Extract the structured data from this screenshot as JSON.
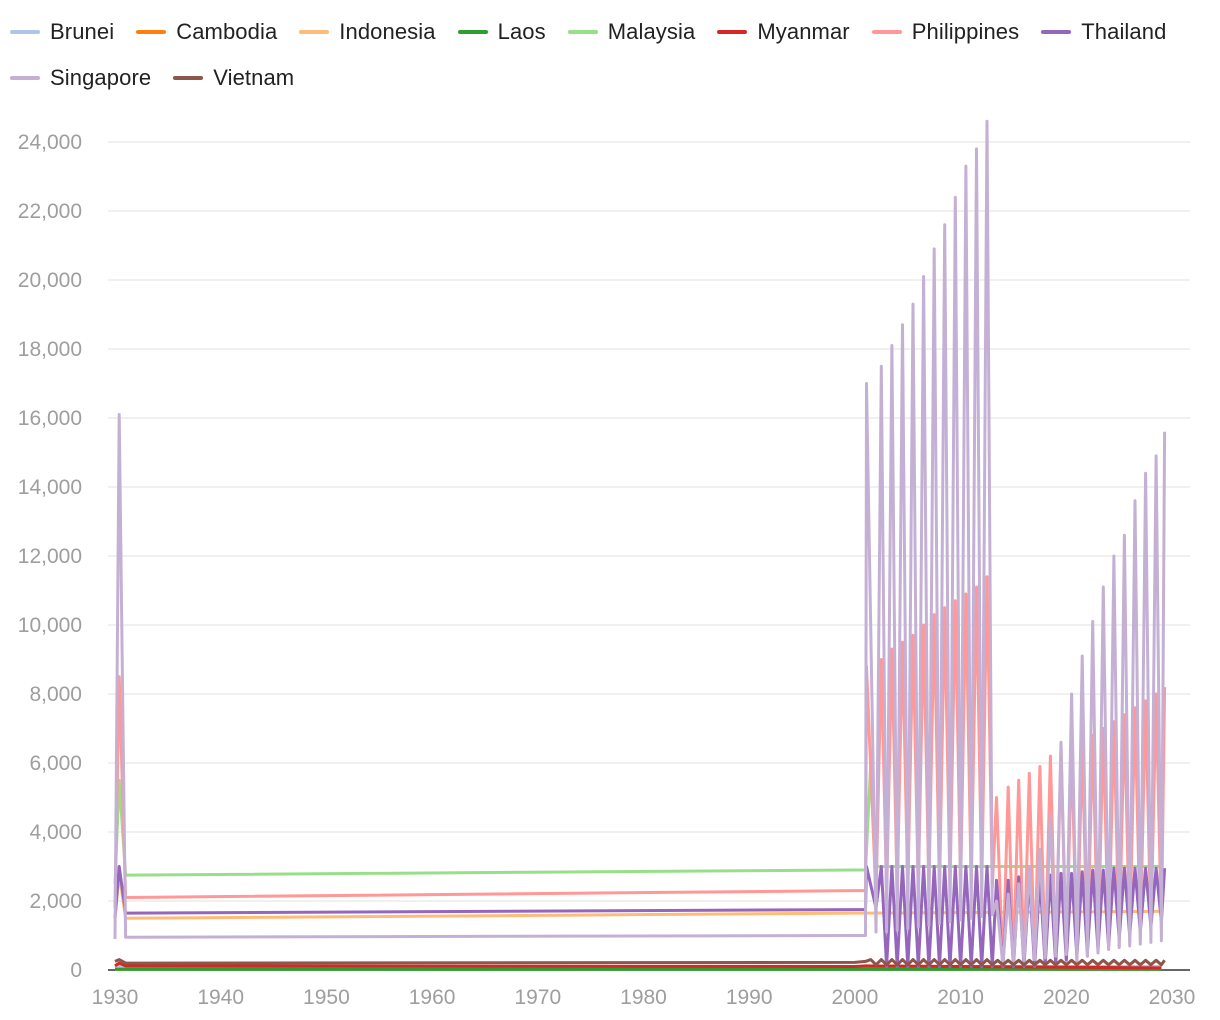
{
  "chart_data": {
    "type": "line",
    "title": "",
    "xlabel": "",
    "ylabel": "",
    "xlim": [
      1930,
      2030
    ],
    "ylim": [
      0,
      25000
    ],
    "x_ticks": [
      1930,
      1940,
      1950,
      1960,
      1970,
      1980,
      1990,
      2000,
      2010,
      2020,
      2030
    ],
    "y_ticks": [
      0,
      2000,
      4000,
      6000,
      8000,
      10000,
      12000,
      14000,
      16000,
      18000,
      20000,
      22000,
      24000
    ],
    "x_tick_labels": [
      "1930",
      "1940",
      "1950",
      "1960",
      "1970",
      "1980",
      "1990",
      "2000",
      "2010",
      "2020",
      "2030"
    ],
    "y_tick_labels": [
      "0",
      "2,000",
      "4,000",
      "6,000",
      "8,000",
      "10,000",
      "12,000",
      "14,000",
      "16,000",
      "18,000",
      "20,000",
      "22,000",
      "24,000"
    ],
    "grid": "horizontal",
    "legend_position": "top",
    "series": [
      {
        "name": "Brunei",
        "color": "#aec7e8",
        "points": [
          [
            1930,
            60
          ],
          [
            1930.4,
            100
          ],
          [
            1931,
            50
          ],
          [
            2000,
            60
          ],
          [
            2001,
            100
          ],
          [
            2029,
            100
          ]
        ]
      },
      {
        "name": "Cambodia",
        "color": "#ff7f0e",
        "points": [
          [
            1930,
            20
          ],
          [
            1931,
            30
          ],
          [
            2000,
            30
          ],
          [
            2001,
            40
          ],
          [
            2029,
            50
          ]
        ]
      },
      {
        "name": "Indonesia",
        "color": "#ffbb78",
        "points": [
          [
            1930,
            1500
          ],
          [
            1930.4,
            2800
          ],
          [
            1931,
            1500
          ],
          [
            2000,
            1650
          ],
          [
            2001,
            1650
          ],
          [
            2029,
            1700
          ]
        ]
      },
      {
        "name": "Laos",
        "color": "#2ca02c",
        "points": [
          [
            1930,
            20
          ],
          [
            1931,
            20
          ],
          [
            2000,
            20
          ],
          [
            2029,
            20
          ]
        ]
      },
      {
        "name": "Malaysia",
        "color": "#98df8a",
        "points": [
          [
            1930,
            2500
          ],
          [
            1930.4,
            5500
          ],
          [
            1931,
            2750
          ],
          [
            2000,
            2900
          ],
          [
            2001,
            2900
          ],
          [
            2001.5,
            6000
          ],
          [
            2002,
            3000
          ],
          [
            2029,
            3000
          ]
        ]
      },
      {
        "name": "Myanmar",
        "color": "#d62728",
        "points": [
          [
            1930,
            120
          ],
          [
            1930.4,
            200
          ],
          [
            1931,
            120
          ],
          [
            2000,
            100
          ],
          [
            2001,
            120
          ],
          [
            2029,
            60
          ]
        ]
      },
      {
        "name": "Philippines",
        "color": "#ff9896",
        "points": [
          [
            1930,
            1800
          ],
          [
            1930.4,
            8500
          ],
          [
            1931,
            2100
          ],
          [
            2000,
            2300
          ],
          [
            2001,
            2300
          ],
          [
            2001.1,
            8800
          ],
          [
            2002,
            2100
          ],
          [
            2002.5,
            9000
          ],
          [
            2003,
            2200
          ],
          [
            2003.5,
            9300
          ],
          [
            2004,
            2200
          ],
          [
            2004.5,
            9500
          ],
          [
            2005,
            2300
          ],
          [
            2005.5,
            9700
          ],
          [
            2006,
            2300
          ],
          [
            2006.5,
            10000
          ],
          [
            2007,
            2300
          ],
          [
            2007.5,
            10300
          ],
          [
            2008,
            2300
          ],
          [
            2008.5,
            10500
          ],
          [
            2009,
            2400
          ],
          [
            2009.5,
            10700
          ],
          [
            2010,
            2400
          ],
          [
            2010.5,
            10900
          ],
          [
            2011,
            2400
          ],
          [
            2011.5,
            11100
          ],
          [
            2012,
            2400
          ],
          [
            2012.5,
            11400
          ],
          [
            2013,
            2400
          ],
          [
            2013.4,
            5000
          ],
          [
            2014,
            100
          ],
          [
            2014.5,
            5300
          ],
          [
            2015,
            200
          ],
          [
            2015.5,
            5500
          ],
          [
            2016,
            200
          ],
          [
            2016.5,
            5700
          ],
          [
            2017,
            200
          ],
          [
            2017.5,
            5900
          ],
          [
            2018,
            200
          ],
          [
            2018.5,
            6200
          ],
          [
            2019,
            200
          ],
          [
            2019.5,
            6400
          ],
          [
            2020,
            200
          ],
          [
            2020.5,
            6500
          ],
          [
            2021,
            200
          ],
          [
            2021.5,
            6600
          ],
          [
            2022,
            400
          ],
          [
            2022.5,
            6800
          ],
          [
            2023,
            500
          ],
          [
            2023.5,
            7000
          ],
          [
            2024,
            600
          ],
          [
            2024.5,
            7200
          ],
          [
            2025,
            700
          ],
          [
            2025.5,
            7400
          ],
          [
            2026,
            800
          ],
          [
            2026.5,
            7600
          ],
          [
            2027,
            900
          ],
          [
            2027.5,
            7800
          ],
          [
            2028,
            1100
          ],
          [
            2028.5,
            8000
          ],
          [
            2029,
            1200
          ],
          [
            2029.3,
            8200
          ]
        ]
      },
      {
        "name": "Thailand",
        "color": "#9467bd",
        "points": [
          [
            1930,
            1500
          ],
          [
            1930.4,
            3000
          ],
          [
            1931,
            1650
          ],
          [
            2000,
            1750
          ],
          [
            2001,
            1750
          ],
          [
            2001.1,
            3000
          ],
          [
            2002,
            1800
          ],
          [
            2002.5,
            3000
          ],
          [
            2003,
            100
          ],
          [
            2003.5,
            3000
          ],
          [
            2004,
            100
          ],
          [
            2004.5,
            3000
          ],
          [
            2005,
            100
          ],
          [
            2005.5,
            3000
          ],
          [
            2006,
            100
          ],
          [
            2006.5,
            3000
          ],
          [
            2007,
            100
          ],
          [
            2007.5,
            3000
          ],
          [
            2008,
            100
          ],
          [
            2008.5,
            3000
          ],
          [
            2009,
            100
          ],
          [
            2009.5,
            3000
          ],
          [
            2010,
            100
          ],
          [
            2010.5,
            3000
          ],
          [
            2011,
            100
          ],
          [
            2011.5,
            3000
          ],
          [
            2012,
            100
          ],
          [
            2012.5,
            3000
          ],
          [
            2013,
            100
          ],
          [
            2013.4,
            2600
          ],
          [
            2014,
            100
          ],
          [
            2014.5,
            2600
          ],
          [
            2015,
            100
          ],
          [
            2015.5,
            2700
          ],
          [
            2016,
            100
          ],
          [
            2016.5,
            2700
          ],
          [
            2017,
            100
          ],
          [
            2017.5,
            2700
          ],
          [
            2018,
            150
          ],
          [
            2018.5,
            2750
          ],
          [
            2019,
            200
          ],
          [
            2019.5,
            2800
          ],
          [
            2020,
            300
          ],
          [
            2020.5,
            2800
          ],
          [
            2021,
            400
          ],
          [
            2021.5,
            2850
          ],
          [
            2022,
            500
          ],
          [
            2022.5,
            2900
          ],
          [
            2023,
            600
          ],
          [
            2023.5,
            2900
          ],
          [
            2024,
            700
          ],
          [
            2024.5,
            2950
          ],
          [
            2025,
            900
          ],
          [
            2025.5,
            2950
          ],
          [
            2026,
            1000
          ],
          [
            2026.5,
            2950
          ],
          [
            2027,
            1100
          ],
          [
            2027.5,
            2950
          ],
          [
            2028,
            1250
          ],
          [
            2028.5,
            2950
          ],
          [
            2029,
            1400
          ],
          [
            2029.3,
            2950
          ]
        ]
      },
      {
        "name": "Singapore",
        "color": "#c5b0d5",
        "points": [
          [
            1930,
            900
          ],
          [
            1930.4,
            16100
          ],
          [
            1931,
            950
          ],
          [
            2000,
            1000
          ],
          [
            2001,
            1000
          ],
          [
            2001.1,
            17000
          ],
          [
            2002,
            1100
          ],
          [
            2002.5,
            17500
          ],
          [
            2003,
            1100
          ],
          [
            2003.5,
            18100
          ],
          [
            2004,
            1150
          ],
          [
            2004.5,
            18700
          ],
          [
            2005,
            1200
          ],
          [
            2005.5,
            19300
          ],
          [
            2006,
            1250
          ],
          [
            2006.5,
            20100
          ],
          [
            2007,
            1300
          ],
          [
            2007.5,
            20900
          ],
          [
            2008,
            1350
          ],
          [
            2008.5,
            21600
          ],
          [
            2009,
            1400
          ],
          [
            2009.5,
            22400
          ],
          [
            2010,
            1450
          ],
          [
            2010.5,
            23300
          ],
          [
            2011,
            1500
          ],
          [
            2011.5,
            23800
          ],
          [
            2012,
            1550
          ],
          [
            2012.5,
            24600
          ],
          [
            2013,
            1600
          ],
          [
            2013.4,
            2000
          ],
          [
            2014,
            150
          ],
          [
            2014.5,
            2200
          ],
          [
            2015,
            200
          ],
          [
            2015.5,
            2500
          ],
          [
            2016,
            250
          ],
          [
            2016.5,
            3000
          ],
          [
            2017,
            300
          ],
          [
            2017.5,
            3500
          ],
          [
            2018,
            350
          ],
          [
            2018.5,
            4500
          ],
          [
            2019,
            400
          ],
          [
            2019.5,
            6600
          ],
          [
            2020,
            450
          ],
          [
            2020.5,
            8000
          ],
          [
            2021,
            300
          ],
          [
            2021.5,
            9100
          ],
          [
            2022,
            400
          ],
          [
            2022.5,
            10100
          ],
          [
            2023,
            500
          ],
          [
            2023.5,
            11100
          ],
          [
            2024,
            600
          ],
          [
            2024.5,
            12000
          ],
          [
            2025,
            650
          ],
          [
            2025.5,
            12600
          ],
          [
            2026,
            700
          ],
          [
            2026.5,
            13600
          ],
          [
            2027,
            750
          ],
          [
            2027.5,
            14400
          ],
          [
            2028,
            800
          ],
          [
            2028.5,
            14900
          ],
          [
            2029,
            850
          ],
          [
            2029.3,
            15600
          ]
        ]
      },
      {
        "name": "Vietnam",
        "color": "#8c564b",
        "points": [
          [
            1930,
            250
          ],
          [
            1930.4,
            300
          ],
          [
            1931,
            200
          ],
          [
            2000,
            220
          ],
          [
            2001,
            250
          ],
          [
            2001.5,
            300
          ],
          [
            2002,
            150
          ],
          [
            2002.5,
            300
          ],
          [
            2003,
            150
          ],
          [
            2003.5,
            300
          ],
          [
            2004,
            150
          ],
          [
            2004.5,
            300
          ],
          [
            2005,
            150
          ],
          [
            2005.5,
            300
          ],
          [
            2006,
            150
          ],
          [
            2006.5,
            300
          ],
          [
            2007,
            150
          ],
          [
            2007.5,
            300
          ],
          [
            2008,
            150
          ],
          [
            2008.5,
            300
          ],
          [
            2009,
            150
          ],
          [
            2009.5,
            300
          ],
          [
            2010,
            150
          ],
          [
            2010.5,
            300
          ],
          [
            2011,
            150
          ],
          [
            2011.5,
            300
          ],
          [
            2012,
            150
          ],
          [
            2012.5,
            300
          ],
          [
            2013,
            150
          ],
          [
            2013.5,
            280
          ],
          [
            2014,
            150
          ],
          [
            2014.5,
            280
          ],
          [
            2015,
            150
          ],
          [
            2015.5,
            280
          ],
          [
            2016,
            150
          ],
          [
            2016.5,
            280
          ],
          [
            2017,
            150
          ],
          [
            2017.5,
            280
          ],
          [
            2018,
            150
          ],
          [
            2018.5,
            280
          ],
          [
            2019,
            150
          ],
          [
            2019.5,
            280
          ],
          [
            2020,
            150
          ],
          [
            2020.5,
            280
          ],
          [
            2021,
            150
          ],
          [
            2021.5,
            280
          ],
          [
            2022,
            150
          ],
          [
            2022.5,
            280
          ],
          [
            2023,
            150
          ],
          [
            2023.5,
            280
          ],
          [
            2024,
            150
          ],
          [
            2024.5,
            280
          ],
          [
            2025,
            150
          ],
          [
            2025.5,
            280
          ],
          [
            2026,
            150
          ],
          [
            2026.5,
            280
          ],
          [
            2027,
            150
          ],
          [
            2027.5,
            280
          ],
          [
            2028,
            150
          ],
          [
            2028.5,
            280
          ],
          [
            2029,
            150
          ],
          [
            2029.3,
            280
          ]
        ]
      }
    ]
  }
}
